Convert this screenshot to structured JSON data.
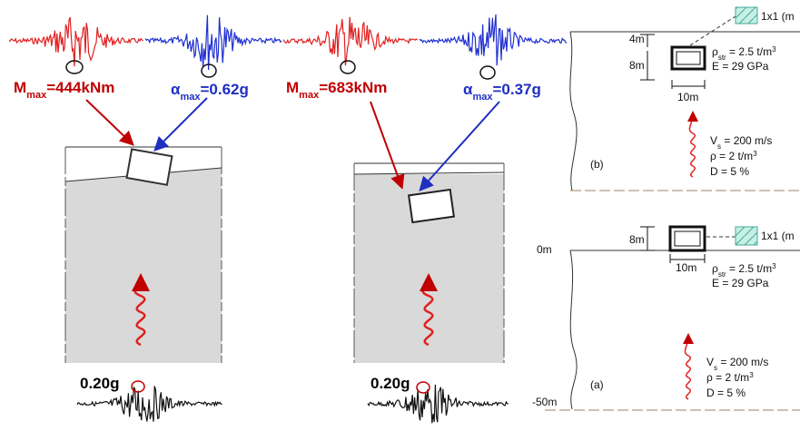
{
  "left_panel": {
    "moment": {
      "symbol": "M",
      "sub": "max",
      "value": "=444kNm"
    },
    "accel": {
      "symbol": "α",
      "sub": "max",
      "value": "=0.62g"
    },
    "input": "0.20g"
  },
  "middle_panel": {
    "moment": {
      "symbol": "M",
      "sub": "max",
      "value": "=683kNm"
    },
    "accel": {
      "symbol": "α",
      "sub": "max",
      "value": "=0.37g"
    },
    "input": "0.20g"
  },
  "panel_b": {
    "label": "(b)",
    "depth_top": "4m",
    "height": "8m",
    "width": "10m",
    "section": "1x1 (m",
    "rho_str": {
      "symbol": "ρ",
      "sub": "str",
      "value": " = 2.5 t/m",
      "sup": "3"
    },
    "modulus": "E = 29 GPa",
    "vs": {
      "symbol": "V",
      "sub": "s",
      "value": " = 200 m/s"
    },
    "rho": {
      "value": "ρ = 2 t/m",
      "sup": "3"
    },
    "damping": "D = 5 %"
  },
  "panel_a": {
    "label": "(a)",
    "top_label": "0m",
    "bottom_label": "-50m",
    "height": "8m",
    "width": "10m",
    "section": "1x1 (m",
    "rho_str": {
      "symbol": "ρ",
      "sub": "str",
      "value": " = 2.5 t/m",
      "sup": "3"
    },
    "modulus": "E = 29 GPa",
    "vs": {
      "symbol": "V",
      "sub": "s",
      "value": " = 200 m/s"
    },
    "rho": {
      "value": "ρ = 2 t/m",
      "sup": "3"
    },
    "damping": "D = 5 %"
  }
}
